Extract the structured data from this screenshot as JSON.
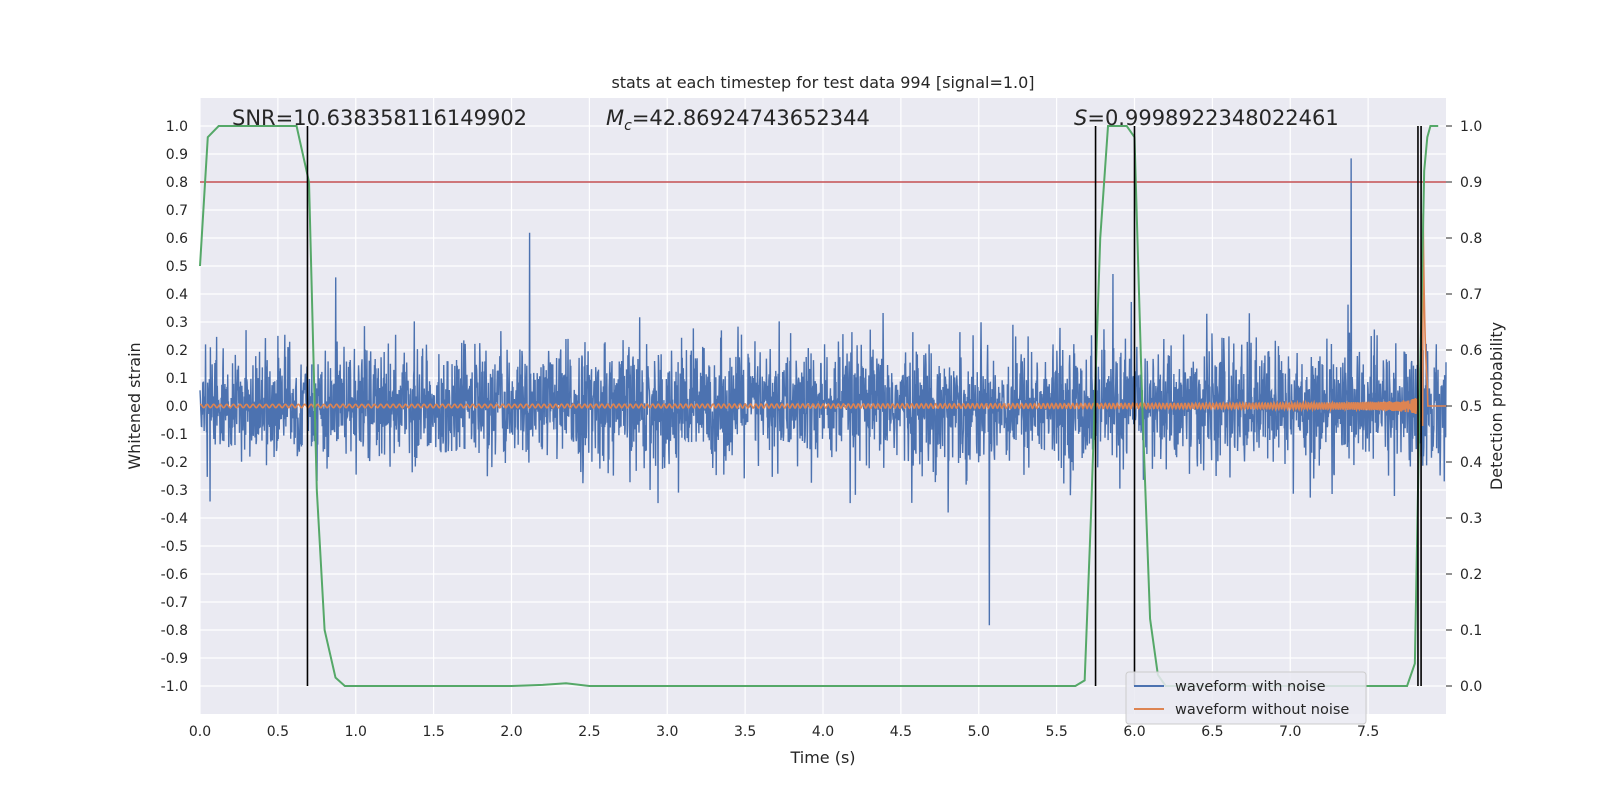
{
  "chart_data": {
    "type": "line",
    "title": "stats at each timestep for test data 994 [signal=1.0]",
    "xlabel": "Time (s)",
    "ylabel": "Whitened strain",
    "ylabel_right": "Detection probability",
    "xlim": [
      0.0,
      8.0
    ],
    "ylim": [
      -1.1,
      1.1
    ],
    "ylim_right": [
      -0.05,
      1.05
    ],
    "x_ticks": [
      "0.0",
      "0.5",
      "1.0",
      "1.5",
      "2.0",
      "2.5",
      "3.0",
      "3.5",
      "4.0",
      "4.5",
      "5.0",
      "5.5",
      "6.0",
      "6.5",
      "7.0",
      "7.5"
    ],
    "x_tick_values": [
      0,
      0.5,
      1,
      1.5,
      2,
      2.5,
      3,
      3.5,
      4,
      4.5,
      5,
      5.5,
      6,
      6.5,
      7,
      7.5
    ],
    "y_ticks": [
      "1.0",
      "0.9",
      "0.8",
      "0.7",
      "0.6",
      "0.5",
      "0.4",
      "0.3",
      "0.2",
      "0.1",
      "0.0",
      "-0.1",
      "-0.2",
      "-0.3",
      "-0.4",
      "-0.5",
      "-0.6",
      "-0.7",
      "-0.8",
      "-0.9",
      "-1.0"
    ],
    "y_tick_values": [
      1.0,
      0.9,
      0.8,
      0.7,
      0.6,
      0.5,
      0.4,
      0.3,
      0.2,
      0.1,
      0.0,
      -0.1,
      -0.2,
      -0.3,
      -0.4,
      -0.5,
      -0.6,
      -0.7,
      -0.8,
      -0.9,
      -1.0
    ],
    "y2_ticks": [
      "1.0",
      "0.9",
      "0.8",
      "0.7",
      "0.6",
      "0.5",
      "0.4",
      "0.3",
      "0.2",
      "0.1",
      "0.0"
    ],
    "y2_tick_values": [
      1.0,
      0.9,
      0.8,
      0.7,
      0.6,
      0.5,
      0.4,
      0.3,
      0.2,
      0.1,
      0.0
    ],
    "annotations": {
      "snr": "SNR=10.638358116149902",
      "mc_symbol": "M",
      "mc_sub": "c",
      "mc_value": "=42.86924743652344",
      "s_symbol": "S",
      "s_value": "=0.9998922348022461"
    },
    "threshold": {
      "value": 0.9,
      "axis": "right",
      "color": "#c44e52"
    },
    "vertical_lines": [
      0.69,
      5.75,
      6.0,
      7.82,
      7.84
    ],
    "detection_probability": {
      "x": [
        0.0,
        0.05,
        0.12,
        0.2,
        0.3,
        0.4,
        0.5,
        0.6,
        0.62,
        0.7,
        0.75,
        0.8,
        0.87,
        0.93,
        1.0,
        1.5,
        2.0,
        2.2,
        2.35,
        2.5,
        3.0,
        3.5,
        4.0,
        4.5,
        5.0,
        5.5,
        5.62,
        5.68,
        5.72,
        5.78,
        5.83,
        5.95,
        6.0,
        6.05,
        6.1,
        6.15,
        6.2,
        6.5,
        7.0,
        7.5,
        7.7,
        7.75,
        7.8,
        7.83,
        7.86,
        7.88,
        7.9,
        7.95
      ],
      "y": [
        0.75,
        0.98,
        1.0,
        1.0,
        1.0,
        1.0,
        1.0,
        1.0,
        1.0,
        0.9,
        0.35,
        0.1,
        0.015,
        0.0,
        0.0,
        0.0,
        0.0,
        0.002,
        0.005,
        0.0,
        0.0,
        0.0,
        0.0,
        0.0,
        0.0,
        0.0,
        0.0,
        0.01,
        0.3,
        0.8,
        1.0,
        1.0,
        0.98,
        0.5,
        0.12,
        0.02,
        0.0,
        0.0,
        0.0,
        0.0,
        0.0,
        0.0,
        0.04,
        0.5,
        0.92,
        0.98,
        1.0,
        1.0
      ],
      "color": "#55a868"
    },
    "series": [
      {
        "name": "waveform with noise",
        "color": "#4c72b0",
        "noise_std": 0.105,
        "t_range": [
          0.0,
          8.0
        ]
      },
      {
        "name": "waveform without noise",
        "color": "#dd8452",
        "merger_time": 7.85
      }
    ],
    "legend": {
      "placement": "lower-right"
    }
  }
}
